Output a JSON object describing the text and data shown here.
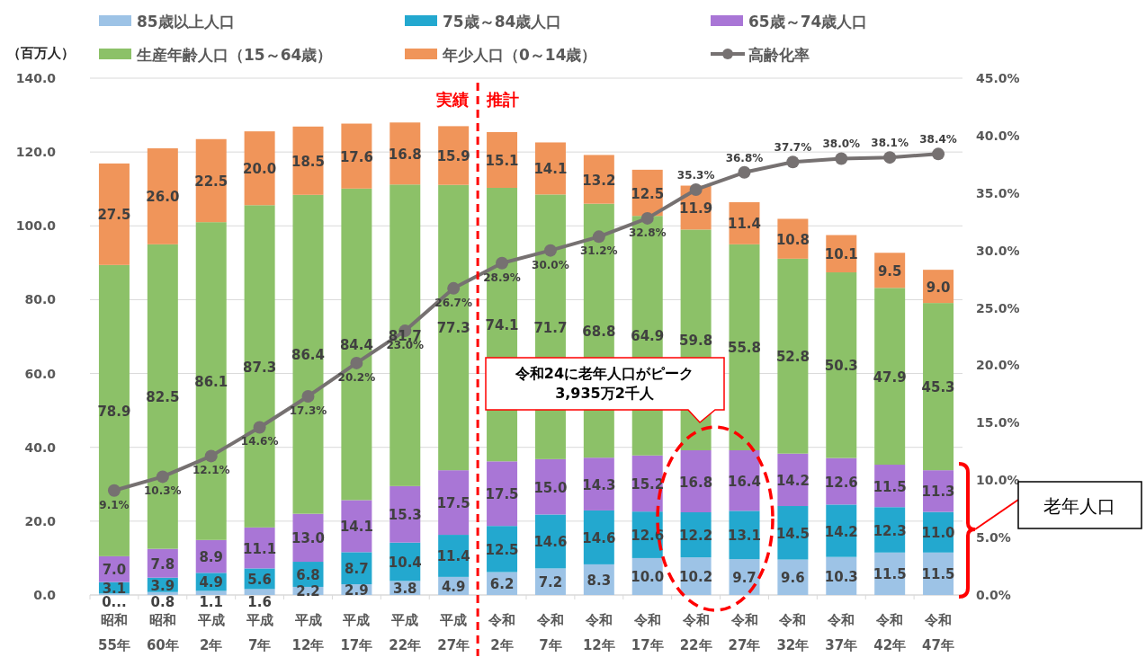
{
  "chart_data": {
    "type": "bar",
    "stacked": true,
    "ylabel": "（百万人）",
    "categories": [
      "昭和\n55年",
      "昭和\n60年",
      "平成\n2年",
      "平成\n7年",
      "平成\n12年",
      "平成\n17年",
      "平成\n22年",
      "平成\n27年",
      "令和\n2年",
      "令和\n7年",
      "令和\n12年",
      "令和\n17年",
      "令和\n22年",
      "令和\n27年",
      "令和\n32年",
      "令和\n37年",
      "令和\n42年",
      "令和\n47年"
    ],
    "series": [
      {
        "name": "85歳以上人口",
        "color": "#9dc3e6",
        "values": [
          0.4,
          0.8,
          1.1,
          1.6,
          2.2,
          2.9,
          3.8,
          4.9,
          6.2,
          7.2,
          8.3,
          10.0,
          10.2,
          9.7,
          9.6,
          10.3,
          11.5,
          11.5
        ],
        "value_labels": [
          "0...",
          "0.8",
          "1.1",
          "1.6",
          "2.2",
          "2.9",
          "3.8",
          "4.9",
          "6.2",
          "7.2",
          "8.3",
          "10.0",
          "10.2",
          "9.7",
          "9.6",
          "10.3",
          "11.5",
          "11.5"
        ]
      },
      {
        "name": "75歳～84歳人口",
        "color": "#23a8cf",
        "values": [
          3.1,
          3.9,
          4.9,
          5.6,
          6.8,
          8.7,
          10.4,
          11.4,
          12.5,
          14.6,
          14.6,
          12.6,
          12.2,
          13.1,
          14.5,
          14.2,
          12.3,
          11.0
        ],
        "value_labels": [
          "3.1",
          "3.9",
          "4.9",
          "5.6",
          "6.8",
          "8.7",
          "10.4",
          "11.4",
          "12.5",
          "14.6",
          "14.6",
          "12.6",
          "12.2",
          "13.1",
          "14.5",
          "14.2",
          "12.3",
          "11.0"
        ]
      },
      {
        "name": "65歳～74歳人口",
        "color": "#a976d6",
        "values": [
          7.0,
          7.8,
          8.9,
          11.1,
          13.0,
          14.1,
          15.3,
          17.5,
          17.5,
          15.0,
          14.3,
          15.2,
          16.8,
          16.4,
          14.2,
          12.6,
          11.5,
          11.3
        ],
        "value_labels": [
          "7.0",
          "7.8",
          "8.9",
          "11.1",
          "13.0",
          "14.1",
          "15.3",
          "17.5",
          "17.5",
          "15.0",
          "14.3",
          "15.2",
          "16.8",
          "16.4",
          "14.2",
          "12.6",
          "11.5",
          "11.3"
        ]
      },
      {
        "name": "生産年齢人口（15～64歳）",
        "color": "#8cc168",
        "values": [
          78.9,
          82.5,
          86.1,
          87.3,
          86.4,
          84.4,
          81.7,
          77.3,
          74.1,
          71.7,
          68.8,
          64.9,
          59.8,
          55.8,
          52.8,
          50.3,
          47.9,
          45.3
        ],
        "value_labels": [
          "78.9",
          "82.5",
          "86.1",
          "87.3",
          "86.4",
          "84.4",
          "81.7",
          "77.3",
          "74.1",
          "71.7",
          "68.8",
          "64.9",
          "59.8",
          "55.8",
          "52.8",
          "50.3",
          "47.9",
          "45.3"
        ]
      },
      {
        "name": "年少人口（0～14歳）",
        "color": "#f0955a",
        "values": [
          27.5,
          26.0,
          22.5,
          20.0,
          18.5,
          17.6,
          16.8,
          15.9,
          15.1,
          14.1,
          13.2,
          12.5,
          11.9,
          11.4,
          10.8,
          10.1,
          9.5,
          9.0
        ],
        "value_labels": [
          "27.5",
          "26.0",
          "22.5",
          "20.0",
          "18.5",
          "17.6",
          "16.8",
          "15.9",
          "15.1",
          "14.1",
          "13.2",
          "12.5",
          "11.9",
          "11.4",
          "10.8",
          "10.1",
          "9.5",
          "9.0"
        ]
      },
      {
        "name": "高齢化率",
        "type": "line",
        "axis": "y2",
        "color": "#767171",
        "marker": "circle",
        "values": [
          9.1,
          10.3,
          12.1,
          14.6,
          17.3,
          20.2,
          23.0,
          26.7,
          28.9,
          30.0,
          31.2,
          32.8,
          35.3,
          36.8,
          37.7,
          38.0,
          38.1,
          38.4
        ],
        "value_labels": [
          "9.1%",
          "10.3%",
          "12.1%",
          "14.6%",
          "17.3%",
          "20.2%",
          "23.0%",
          "26.7%",
          "28.9%",
          "30.0%",
          "31.2%",
          "32.8%",
          "35.3%",
          "36.8%",
          "37.7%",
          "38.0%",
          "38.1%",
          "38.4%"
        ]
      }
    ],
    "ylim": [
      0,
      140
    ],
    "yticks": [
      {
        "value": 0,
        "label": "0.0"
      },
      {
        "value": 20,
        "label": "20.0"
      },
      {
        "value": 40,
        "label": "40.0"
      },
      {
        "value": 60,
        "label": "60.0"
      },
      {
        "value": 80,
        "label": "80.0"
      },
      {
        "value": 100,
        "label": "100.0"
      },
      {
        "value": 120,
        "label": "120.0"
      },
      {
        "value": 140,
        "label": "140.0"
      }
    ],
    "y2lim": [
      0,
      45
    ],
    "y2ticks": [
      {
        "value": 0,
        "label": "0.0%"
      },
      {
        "value": 5,
        "label": "5.0%"
      },
      {
        "value": 10,
        "label": "10.0%"
      },
      {
        "value": 15,
        "label": "15.0%"
      },
      {
        "value": 20,
        "label": "20.0%"
      },
      {
        "value": 25,
        "label": "25.0%"
      },
      {
        "value": 30,
        "label": "30.0%"
      },
      {
        "value": 35,
        "label": "35.0%"
      },
      {
        "value": 40,
        "label": "40.0%"
      },
      {
        "value": 45,
        "label": "45.0%"
      }
    ],
    "grid": "y",
    "legend": "top",
    "annotations": [
      "実績",
      "推計",
      "令和24に老年人口がピーク\n3,935万2千人",
      "老年人口"
    ]
  }
}
